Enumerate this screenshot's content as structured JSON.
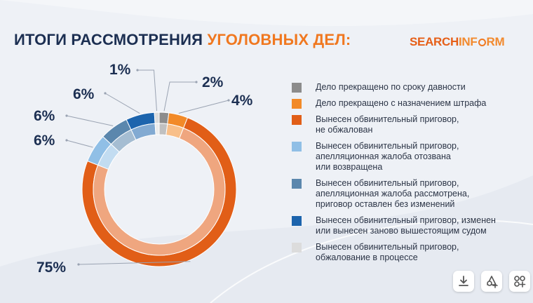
{
  "title": {
    "main": "ИТОГИ РАССМОТРЕНИЯ",
    "accent": "УГОЛОВНЫХ ДЕЛ:"
  },
  "logo": {
    "part1": "SEARCH",
    "part2": "IN",
    "part3": "F",
    "part4": "RM"
  },
  "chart_data": {
    "type": "pie",
    "variant": "donut",
    "categories": [
      "Дело прекращено по сроку давности",
      "Дело прекращено с назначением штрафа",
      "Вынесен обвинительный приговор,\nне обжалован",
      "Вынесен обвинительный приговор,\nапелляционная жалоба отозвана\nили возвращена",
      "Вынесен обвинительный приговор,\nапелляционная жалоба рассмотрена,\nприговор оставлен без изменений",
      "Вынесен обвинительный приговор, изменен\nили вынесен заново вышестоящим судом",
      "Вынесен обвинительный приговор,\nобжалование в процессе"
    ],
    "values": [
      2,
      4,
      75,
      6,
      6,
      6,
      1
    ],
    "labels": [
      "2%",
      "4%",
      "75%",
      "6%",
      "6%",
      "6%",
      "1%"
    ],
    "colors": [
      "#8c8c8c",
      "#f28a28",
      "#e15e17",
      "#90bfe6",
      "#5b87ad",
      "#1c64ad",
      "#dcdcdc"
    ],
    "unit": "%",
    "legend_position": "right"
  },
  "toolbar": {
    "download_icon": "download-icon",
    "share_icon": "share-icon",
    "settings_icon": "expand-icon"
  }
}
